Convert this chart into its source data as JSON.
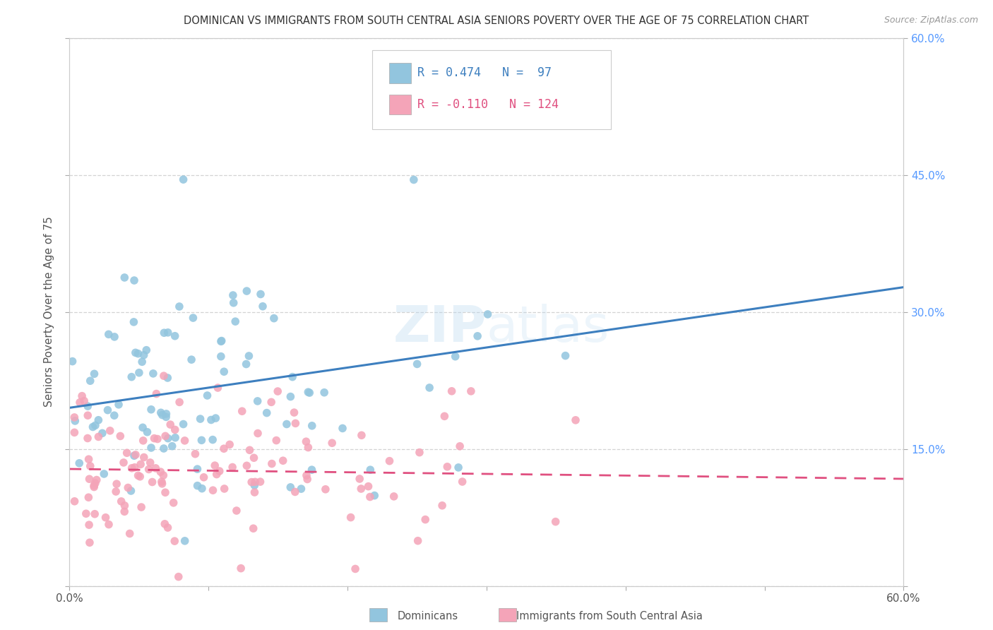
{
  "title": "DOMINICAN VS IMMIGRANTS FROM SOUTH CENTRAL ASIA SENIORS POVERTY OVER THE AGE OF 75 CORRELATION CHART",
  "source": "Source: ZipAtlas.com",
  "ylabel": "Seniors Poverty Over the Age of 75",
  "xlim": [
    0.0,
    0.6
  ],
  "ylim": [
    0.0,
    0.6
  ],
  "xtick_vals": [
    0.0,
    0.1,
    0.2,
    0.3,
    0.4,
    0.5,
    0.6
  ],
  "xtick_labels": [
    "0.0%",
    "",
    "",
    "",
    "",
    "",
    "60.0%"
  ],
  "ytick_vals": [
    0.0,
    0.15,
    0.3,
    0.45,
    0.6
  ],
  "ytick_labels_right": [
    "",
    "15.0%",
    "30.0%",
    "45.0%",
    "60.0%"
  ],
  "background_color": "#ffffff",
  "plot_bg_color": "#ffffff",
  "grid_color": "#c8c8c8",
  "blue_color": "#92c5de",
  "blue_line_color": "#3d7fbf",
  "pink_color": "#f4a4b8",
  "pink_line_color": "#e05080",
  "R_blue": 0.474,
  "N_blue": 97,
  "R_pink": -0.11,
  "N_pink": 124,
  "legend_label_blue": "Dominicans",
  "legend_label_pink": "Immigrants from South Central Asia",
  "blue_intercept": 0.195,
  "blue_slope": 0.22,
  "pink_intercept": 0.128,
  "pink_slope": -0.018,
  "seed_blue": 7777,
  "seed_pink": 8888
}
